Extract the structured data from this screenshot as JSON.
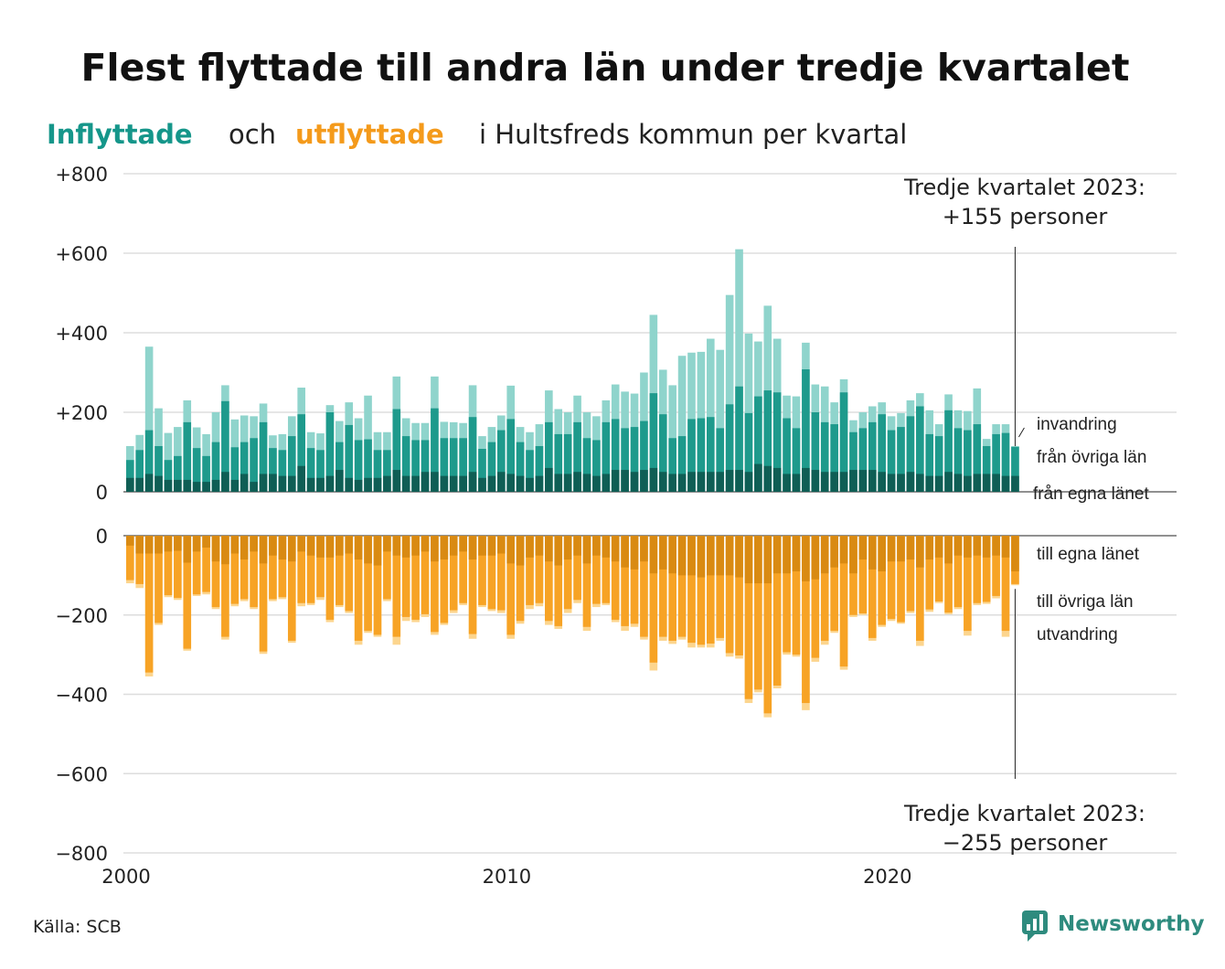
{
  "title": "Flest flyttade till andra län under tredje kvartalet",
  "subtitle": {
    "part1": "Inflyttade",
    "part2": "och",
    "part3": "utflyttade",
    "part4": "i Hultsfreds  kommun  per  kvartal"
  },
  "source": "Källa: SCB",
  "brand": "Newsworthy",
  "colors": {
    "in_local": "#0f5e55",
    "in_other": "#1e9a8c",
    "in_immig": "#8fd4cc",
    "out_local": "#d98a12",
    "out_other": "#f7a325",
    "out_emig": "#fcd58e",
    "subtitle_in": "#15968a",
    "subtitle_out": "#f49a1b"
  },
  "chart_data": {
    "type": "bar",
    "layout": "diverging-stacked",
    "start_quarter": "2000 Q1",
    "x_ticks": [
      "2000",
      "2010",
      "2020"
    ],
    "y_ticks_top": [
      "+800",
      "+600",
      "+400",
      "+200",
      "0"
    ],
    "y_ticks_bottom": [
      "0",
      "−200",
      "−400",
      "−600",
      "−800"
    ],
    "ylim_in": [
      0,
      800
    ],
    "ylim_out": [
      -800,
      0
    ],
    "grid": true,
    "series_labels": {
      "in_immig": "invandring",
      "in_other": "från övriga län",
      "in_local": "från egna länet",
      "out_local": "till egna länet",
      "out_other": "till övriga län",
      "out_emig": "utvandring"
    },
    "annotation_top": {
      "line1": "Tredje kvartalet 2023:",
      "line2": "+155 personer"
    },
    "annotation_bottom": {
      "line1": "Tredje kvartalet 2023:",
      "line2": "−255 personer"
    },
    "inflow_total": [
      115,
      143,
      365,
      210,
      148,
      163,
      230,
      162,
      145,
      200,
      268,
      182,
      192,
      190,
      222,
      142,
      145,
      190,
      262,
      150,
      147,
      218,
      178,
      225,
      185,
      242,
      150,
      150,
      290,
      185,
      173,
      173,
      290,
      176,
      175,
      173,
      268,
      140,
      163,
      192,
      267,
      163,
      150,
      170,
      255,
      208,
      200,
      242,
      200,
      190,
      230,
      270,
      252,
      247,
      300,
      445,
      307,
      268,
      342,
      350,
      352,
      385,
      357,
      495,
      610,
      398,
      378,
      468,
      385,
      242,
      240,
      375,
      270,
      265,
      225,
      283,
      180,
      200,
      215,
      225,
      190,
      198,
      230,
      248,
      205,
      170,
      245,
      205,
      203,
      260,
      133,
      170,
      170,
      115
    ],
    "inflow_other_county": [
      80,
      105,
      155,
      115,
      80,
      90,
      175,
      110,
      90,
      125,
      228,
      112,
      125,
      135,
      175,
      110,
      105,
      140,
      195,
      110,
      105,
      200,
      125,
      168,
      130,
      132,
      105,
      105,
      208,
      140,
      130,
      130,
      210,
      135,
      135,
      135,
      188,
      108,
      125,
      155,
      183,
      125,
      105,
      115,
      175,
      145,
      145,
      175,
      135,
      130,
      175,
      183,
      160,
      163,
      178,
      248,
      195,
      135,
      140,
      183,
      185,
      188,
      160,
      220,
      265,
      198,
      240,
      255,
      250,
      185,
      160,
      308,
      200,
      175,
      170,
      250,
      150,
      160,
      175,
      195,
      155,
      163,
      190,
      215,
      145,
      140,
      205,
      160,
      155,
      170,
      115,
      145,
      148,
      113
    ],
    "inflow_own_county": [
      35,
      35,
      45,
      40,
      30,
      30,
      30,
      25,
      25,
      30,
      50,
      30,
      45,
      25,
      45,
      45,
      40,
      40,
      65,
      35,
      35,
      40,
      55,
      35,
      30,
      35,
      35,
      40,
      55,
      40,
      40,
      50,
      50,
      40,
      40,
      40,
      50,
      35,
      40,
      50,
      45,
      40,
      35,
      40,
      60,
      45,
      45,
      50,
      45,
      40,
      45,
      55,
      55,
      50,
      55,
      60,
      50,
      45,
      45,
      50,
      50,
      50,
      50,
      55,
      55,
      50,
      70,
      65,
      60,
      45,
      45,
      60,
      55,
      50,
      50,
      50,
      55,
      55,
      55,
      50,
      45,
      45,
      50,
      45,
      40,
      40,
      50,
      45,
      40,
      45,
      45,
      45,
      40,
      40
    ],
    "outflow_total": [
      -120,
      -132,
      -355,
      -225,
      -155,
      -162,
      -290,
      -152,
      -148,
      -185,
      -262,
      -178,
      -165,
      -185,
      -298,
      -165,
      -160,
      -270,
      -178,
      -175,
      -162,
      -218,
      -180,
      -195,
      -275,
      -245,
      -255,
      -165,
      -275,
      -215,
      -218,
      -205,
      -250,
      -225,
      -195,
      -175,
      -260,
      -180,
      -190,
      -195,
      -260,
      -222,
      -185,
      -178,
      -225,
      -235,
      -195,
      -170,
      -240,
      -180,
      -175,
      -218,
      -240,
      -230,
      -262,
      -340,
      -265,
      -273,
      -262,
      -282,
      -282,
      -282,
      -265,
      -305,
      -310,
      -422,
      -395,
      -458,
      -385,
      -300,
      -305,
      -440,
      -318,
      -275,
      -245,
      -338,
      -205,
      -200,
      -265,
      -230,
      -215,
      -222,
      -195,
      -278,
      -192,
      -170,
      -198,
      -185,
      -252,
      -175,
      -172,
      -158,
      -255,
      -125
    ],
    "outflow_other_county": [
      -112,
      -122,
      -345,
      -220,
      -150,
      -157,
      -285,
      -148,
      -142,
      -180,
      -255,
      -172,
      -160,
      -180,
      -292,
      -160,
      -155,
      -265,
      -170,
      -170,
      -155,
      -212,
      -175,
      -190,
      -265,
      -240,
      -250,
      -160,
      -255,
      -205,
      -212,
      -198,
      -243,
      -220,
      -188,
      -170,
      -248,
      -175,
      -185,
      -188,
      -250,
      -215,
      -175,
      -170,
      -215,
      -228,
      -185,
      -162,
      -230,
      -172,
      -170,
      -212,
      -228,
      -222,
      -255,
      -320,
      -255,
      -265,
      -255,
      -270,
      -275,
      -272,
      -258,
      -296,
      -302,
      -412,
      -388,
      -448,
      -378,
      -294,
      -300,
      -422,
      -308,
      -265,
      -240,
      -330,
      -200,
      -196,
      -258,
      -225,
      -210,
      -218,
      -190,
      -265,
      -186,
      -166,
      -194,
      -180,
      -240,
      -170,
      -167,
      -152,
      -240,
      -122
    ],
    "outflow_own_county": [
      -25,
      -45,
      -45,
      -45,
      -40,
      -38,
      -68,
      -40,
      -30,
      -65,
      -72,
      -45,
      -60,
      -40,
      -70,
      -50,
      -60,
      -65,
      -40,
      -50,
      -55,
      -55,
      -50,
      -45,
      -60,
      -70,
      -75,
      -40,
      -50,
      -55,
      -50,
      -40,
      -65,
      -60,
      -50,
      -40,
      -60,
      -50,
      -50,
      -45,
      -70,
      -75,
      -55,
      -50,
      -65,
      -75,
      -60,
      -50,
      -70,
      -50,
      -55,
      -65,
      -80,
      -85,
      -65,
      -95,
      -85,
      -95,
      -100,
      -100,
      -105,
      -100,
      -100,
      -100,
      -105,
      -120,
      -120,
      -120,
      -95,
      -95,
      -90,
      -115,
      -110,
      -95,
      -80,
      -70,
      -95,
      -60,
      -85,
      -90,
      -65,
      -65,
      -60,
      -80,
      -60,
      -55,
      -70,
      -50,
      -55,
      -50,
      -55,
      -50,
      -55,
      -90
    ]
  }
}
